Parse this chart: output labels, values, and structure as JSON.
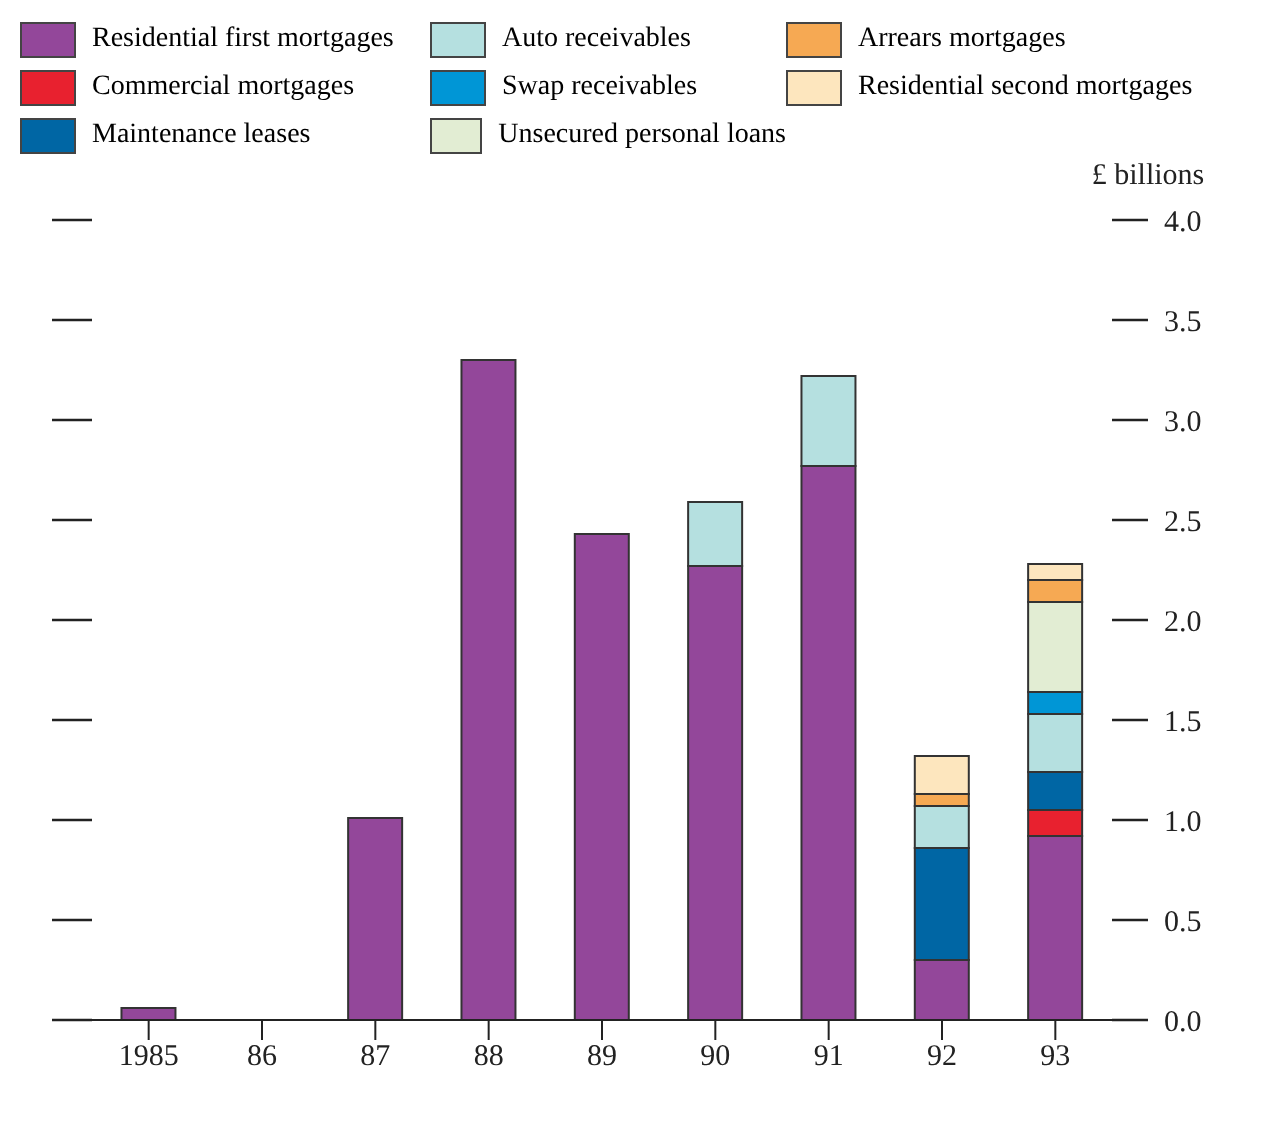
{
  "chart_data": {
    "type": "bar",
    "stacked": true,
    "ylabel": "£ billions",
    "categories": [
      "1985",
      "86",
      "87",
      "88",
      "89",
      "90",
      "91",
      "92",
      "93"
    ],
    "series": [
      {
        "name": "Residential first mortgages",
        "color": "#93479a",
        "values": [
          0.06,
          0,
          1.01,
          3.3,
          2.43,
          2.27,
          2.77,
          0.3,
          0.92
        ]
      },
      {
        "name": "Commercial mortgages",
        "color": "#e8212f",
        "values": [
          0,
          0,
          0,
          0,
          0,
          0,
          0,
          0,
          0.13
        ]
      },
      {
        "name": "Maintenance leases",
        "color": "#0066a4",
        "values": [
          0,
          0,
          0,
          0,
          0,
          0,
          0,
          0.56,
          0.19
        ]
      },
      {
        "name": "Auto receivables",
        "color": "#b5e0e0",
        "values": [
          0,
          0,
          0,
          0,
          0,
          0.32,
          0.45,
          0.21,
          0.29
        ]
      },
      {
        "name": "Swap receivables",
        "color": "#0096d6",
        "values": [
          0,
          0,
          0,
          0,
          0,
          0,
          0,
          0,
          0.11
        ]
      },
      {
        "name": "Unsecured personal loans",
        "color": "#e2edd3",
        "values": [
          0,
          0,
          0,
          0,
          0,
          0,
          0,
          0,
          0.45
        ]
      },
      {
        "name": "Arrears mortgages",
        "color": "#f6a953",
        "values": [
          0,
          0,
          0,
          0,
          0,
          0,
          0,
          0.06,
          0.11
        ]
      },
      {
        "name": "Residential second mortgages",
        "color": "#fde6be",
        "values": [
          0,
          0,
          0,
          0,
          0,
          0,
          0,
          0.19,
          0.08
        ]
      }
    ],
    "ylim": [
      0,
      4
    ],
    "yticks": [
      {
        "value": 0,
        "label": "0.0"
      },
      {
        "value": 0.5,
        "label": "0.5"
      },
      {
        "value": 1,
        "label": "1.0"
      },
      {
        "value": 1.5,
        "label": "1.5"
      },
      {
        "value": 2,
        "label": "2.0"
      },
      {
        "value": 2.5,
        "label": "2.5"
      },
      {
        "value": 3,
        "label": "3.0"
      },
      {
        "value": 3.5,
        "label": "3.5"
      },
      {
        "value": 4,
        "label": "4.0"
      }
    ],
    "grid": false,
    "legend": "top"
  }
}
